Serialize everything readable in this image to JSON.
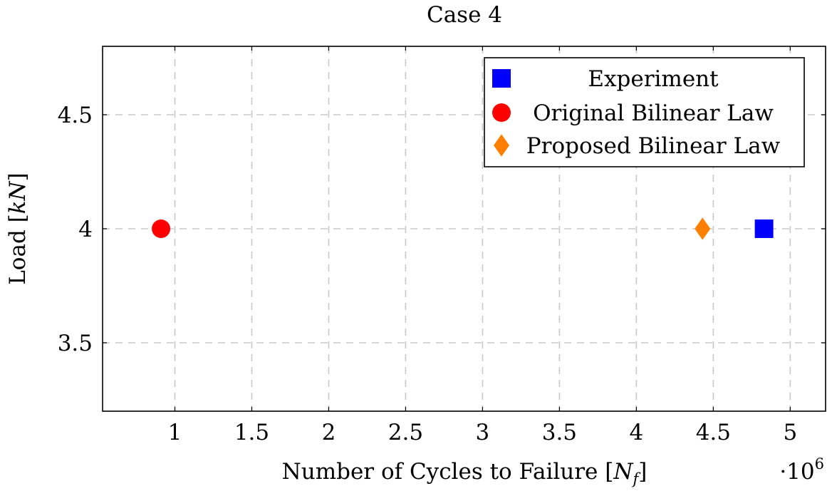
{
  "chart_data": {
    "type": "scatter",
    "title": "Case 4",
    "xlabel": "Number of Cycles to Failure [N_f]",
    "ylabel": "Load [kN]",
    "x_scale_label": "·10⁶",
    "xlim": [
      0.53,
      5.23
    ],
    "ylim": [
      3.2,
      4.8
    ],
    "xticks": [
      1,
      1.5,
      2,
      2.5,
      3,
      3.5,
      4,
      4.5,
      5
    ],
    "xtick_labels": [
      "1",
      "1.5",
      "2",
      "2.5",
      "3",
      "3.5",
      "4",
      "4.5",
      "5"
    ],
    "yticks": [
      3.5,
      4,
      4.5
    ],
    "ytick_labels": [
      "3.5",
      "4",
      "4.5"
    ],
    "grid": true,
    "grid_style": "dashed",
    "legend_position": "top-right",
    "series": [
      {
        "name": "Experiment",
        "marker": "square",
        "color": "#0000ff",
        "x": [
          4.83
        ],
        "y": [
          4.0
        ]
      },
      {
        "name": "Original Bilinear Law",
        "marker": "circle",
        "color": "#ff0000",
        "x": [
          0.91
        ],
        "y": [
          4.0
        ]
      },
      {
        "name": "Proposed Bilinear Law",
        "marker": "diamond",
        "color": "#ff8000",
        "x": [
          4.43
        ],
        "y": [
          4.0
        ]
      }
    ]
  }
}
